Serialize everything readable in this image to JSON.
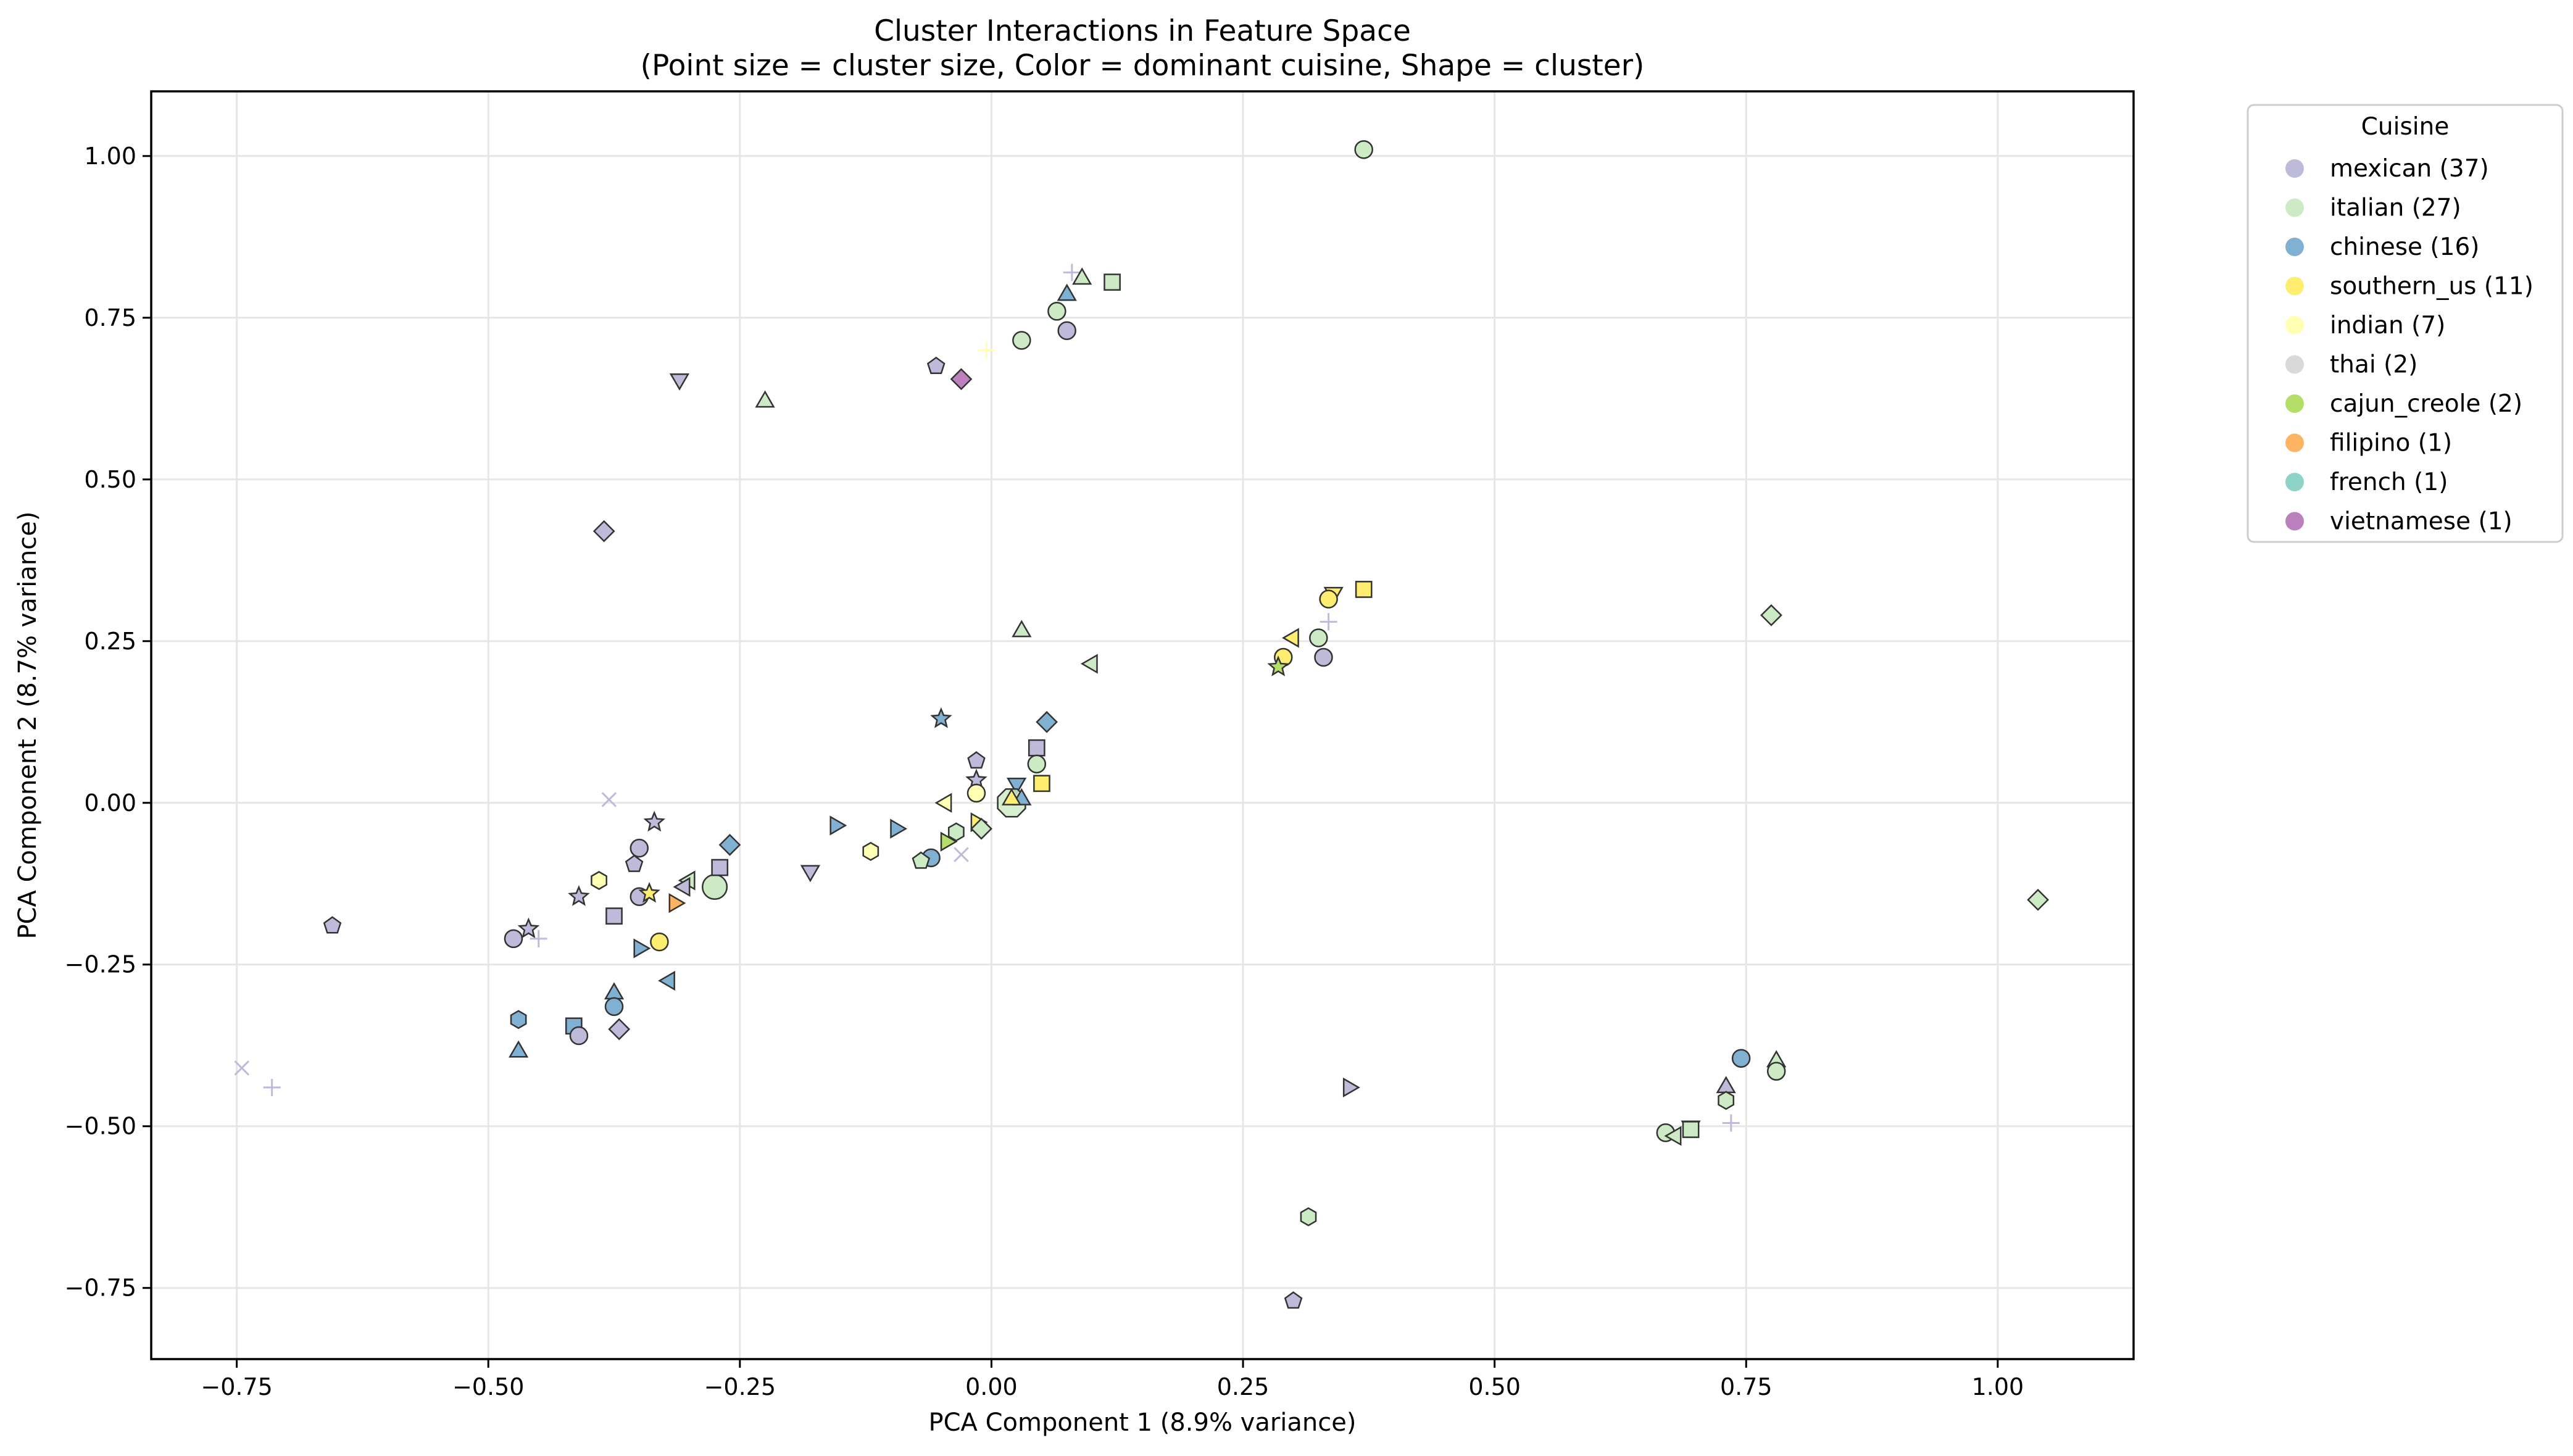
{
  "chart_data": {
    "type": "scatter",
    "title": "Cluster Interactions in Feature Space",
    "subtitle": "(Point size = cluster size, Color = dominant cuisine, Shape = cluster)",
    "xlabel": "PCA Component 1 (8.9% variance)",
    "ylabel": "PCA Component 2 (8.7% variance)",
    "xlim": [
      -0.835,
      1.135
    ],
    "ylim": [
      -0.86,
      1.1
    ],
    "grid": true,
    "xticks": [
      -0.75,
      -0.5,
      -0.25,
      0.0,
      0.25,
      0.5,
      0.75,
      1.0
    ],
    "yticks": [
      -0.75,
      -0.5,
      -0.25,
      0.0,
      0.25,
      0.5,
      0.75,
      1.0
    ],
    "xtick_labels": [
      "−0.75",
      "−0.50",
      "−0.25",
      "0.00",
      "0.25",
      "0.50",
      "0.75",
      "1.00"
    ],
    "ytick_labels": [
      "−0.75",
      "−0.50",
      "−0.25",
      "0.00",
      "0.25",
      "0.50",
      "0.75",
      "1.00"
    ],
    "legend": {
      "title": "Cuisine",
      "position": "outside-upper-right",
      "entries": [
        {
          "label": "mexican (37)",
          "cuisine": "mexican",
          "color": "#bebada"
        },
        {
          "label": "italian (27)",
          "cuisine": "italian",
          "color": "#ccebc5"
        },
        {
          "label": "chinese (16)",
          "cuisine": "chinese",
          "color": "#80b1d3"
        },
        {
          "label": "southern_us (11)",
          "cuisine": "southern_us",
          "color": "#ffed6f"
        },
        {
          "label": "indian (7)",
          "cuisine": "indian",
          "color": "#ffffb3"
        },
        {
          "label": "thai (2)",
          "cuisine": "thai",
          "color": "#d9d9d9"
        },
        {
          "label": "cajun_creole (2)",
          "cuisine": "cajun_creole",
          "color": "#b3de69"
        },
        {
          "label": "filipino (1)",
          "cuisine": "filipino",
          "color": "#fdb462"
        },
        {
          "label": "french (1)",
          "cuisine": "french",
          "color": "#8dd3c7"
        },
        {
          "label": "vietnamese (1)",
          "cuisine": "vietnamese",
          "color": "#bc80bd"
        }
      ]
    },
    "points": [
      {
        "x": 0.37,
        "y": 1.01,
        "cuisine": "italian",
        "shape": "circle",
        "size": 1
      },
      {
        "x": 0.08,
        "y": 0.82,
        "cuisine": "mexican",
        "shape": "plus",
        "size": 1
      },
      {
        "x": 0.12,
        "y": 0.805,
        "cuisine": "italian",
        "shape": "square",
        "size": 1
      },
      {
        "x": 0.09,
        "y": 0.81,
        "cuisine": "italian",
        "shape": "triangle-up",
        "size": 1
      },
      {
        "x": 0.075,
        "y": 0.785,
        "cuisine": "chinese",
        "shape": "triangle-up",
        "size": 1
      },
      {
        "x": 0.065,
        "y": 0.76,
        "cuisine": "italian",
        "shape": "circle",
        "size": 1
      },
      {
        "x": 0.075,
        "y": 0.73,
        "cuisine": "mexican",
        "shape": "circle",
        "size": 1
      },
      {
        "x": 0.03,
        "y": 0.715,
        "cuisine": "italian",
        "shape": "circle",
        "size": 1
      },
      {
        "x": -0.005,
        "y": 0.7,
        "cuisine": "indian",
        "shape": "plus",
        "size": 1
      },
      {
        "x": -0.055,
        "y": 0.675,
        "cuisine": "mexican",
        "shape": "pentagon",
        "size": 1
      },
      {
        "x": -0.03,
        "y": 0.655,
        "cuisine": "vietnamese",
        "shape": "diamond",
        "size": 1
      },
      {
        "x": -0.31,
        "y": 0.655,
        "cuisine": "mexican",
        "shape": "triangle-down",
        "size": 1
      },
      {
        "x": -0.225,
        "y": 0.62,
        "cuisine": "italian",
        "shape": "triangle-up",
        "size": 1
      },
      {
        "x": -0.385,
        "y": 0.42,
        "cuisine": "mexican",
        "shape": "diamond",
        "size": 1
      },
      {
        "x": 0.775,
        "y": 0.29,
        "cuisine": "italian",
        "shape": "diamond",
        "size": 1
      },
      {
        "x": 0.37,
        "y": 0.33,
        "cuisine": "southern_us",
        "shape": "square",
        "size": 1
      },
      {
        "x": 0.34,
        "y": 0.325,
        "cuisine": "southern_us",
        "shape": "triangle-down",
        "size": 1
      },
      {
        "x": 0.335,
        "y": 0.315,
        "cuisine": "southern_us",
        "shape": "circle",
        "size": 1
      },
      {
        "x": 0.335,
        "y": 0.28,
        "cuisine": "mexican",
        "shape": "plus",
        "size": 1
      },
      {
        "x": 0.3,
        "y": 0.255,
        "cuisine": "southern_us",
        "shape": "triangle-left",
        "size": 1
      },
      {
        "x": 0.325,
        "y": 0.255,
        "cuisine": "italian",
        "shape": "circle",
        "size": 1
      },
      {
        "x": 0.29,
        "y": 0.225,
        "cuisine": "southern_us",
        "shape": "circle",
        "size": 1
      },
      {
        "x": 0.33,
        "y": 0.225,
        "cuisine": "mexican",
        "shape": "circle",
        "size": 1
      },
      {
        "x": 0.285,
        "y": 0.21,
        "cuisine": "cajun_creole",
        "shape": "star",
        "size": 1
      },
      {
        "x": 0.03,
        "y": 0.265,
        "cuisine": "italian",
        "shape": "triangle-up",
        "size": 1
      },
      {
        "x": 0.1,
        "y": 0.215,
        "cuisine": "italian",
        "shape": "triangle-left",
        "size": 1
      },
      {
        "x": 0.055,
        "y": 0.125,
        "cuisine": "chinese",
        "shape": "diamond",
        "size": 1
      },
      {
        "x": -0.05,
        "y": 0.13,
        "cuisine": "chinese",
        "shape": "star",
        "size": 1
      },
      {
        "x": 0.045,
        "y": 0.085,
        "cuisine": "mexican",
        "shape": "square",
        "size": 1
      },
      {
        "x": -0.015,
        "y": 0.065,
        "cuisine": "mexican",
        "shape": "pentagon",
        "size": 1
      },
      {
        "x": 0.045,
        "y": 0.06,
        "cuisine": "italian",
        "shape": "circle",
        "size": 1
      },
      {
        "x": -0.015,
        "y": 0.035,
        "cuisine": "mexican",
        "shape": "star",
        "size": 1
      },
      {
        "x": 0.05,
        "y": 0.03,
        "cuisine": "southern_us",
        "shape": "square",
        "size": 1
      },
      {
        "x": 0.025,
        "y": 0.03,
        "cuisine": "chinese",
        "shape": "triangle-down",
        "size": 1
      },
      {
        "x": 0.02,
        "y": 0.0,
        "cuisine": "italian",
        "shape": "octagon",
        "size": 3
      },
      {
        "x": 0.03,
        "y": 0.005,
        "cuisine": "chinese",
        "shape": "triangle-up",
        "size": 1
      },
      {
        "x": 0.02,
        "y": 0.005,
        "cuisine": "southern_us",
        "shape": "triangle-up",
        "size": 1
      },
      {
        "x": -0.015,
        "y": 0.015,
        "cuisine": "indian",
        "shape": "circle",
        "size": 1
      },
      {
        "x": -0.045,
        "y": 0.0,
        "cuisine": "indian",
        "shape": "triangle-left",
        "size": 1
      },
      {
        "x": -0.015,
        "y": -0.03,
        "cuisine": "southern_us",
        "shape": "triangle-right",
        "size": 1
      },
      {
        "x": -0.01,
        "y": -0.04,
        "cuisine": "italian",
        "shape": "diamond",
        "size": 1
      },
      {
        "x": -0.035,
        "y": -0.045,
        "cuisine": "italian",
        "shape": "hexagon",
        "size": 1
      },
      {
        "x": -0.045,
        "y": -0.06,
        "cuisine": "cajun_creole",
        "shape": "triangle-right",
        "size": 1
      },
      {
        "x": -0.03,
        "y": -0.08,
        "cuisine": "mexican",
        "shape": "x",
        "size": 1
      },
      {
        "x": -0.06,
        "y": -0.085,
        "cuisine": "chinese",
        "shape": "circle",
        "size": 1
      },
      {
        "x": -0.07,
        "y": -0.09,
        "cuisine": "italian",
        "shape": "pentagon",
        "size": 1
      },
      {
        "x": -0.095,
        "y": -0.04,
        "cuisine": "chinese",
        "shape": "triangle-right",
        "size": 1
      },
      {
        "x": -0.155,
        "y": -0.035,
        "cuisine": "chinese",
        "shape": "triangle-right",
        "size": 1
      },
      {
        "x": -0.12,
        "y": -0.075,
        "cuisine": "indian",
        "shape": "hexagon",
        "size": 1
      },
      {
        "x": -0.18,
        "y": -0.105,
        "cuisine": "mexican",
        "shape": "triangle-down",
        "size": 1
      },
      {
        "x": -0.26,
        "y": -0.065,
        "cuisine": "chinese",
        "shape": "diamond",
        "size": 1
      },
      {
        "x": -0.275,
        "y": -0.13,
        "cuisine": "italian",
        "shape": "circle",
        "size": 2
      },
      {
        "x": -0.27,
        "y": -0.1,
        "cuisine": "mexican",
        "shape": "square",
        "size": 1
      },
      {
        "x": -0.38,
        "y": 0.005,
        "cuisine": "mexican",
        "shape": "x",
        "size": 1
      },
      {
        "x": -0.335,
        "y": -0.03,
        "cuisine": "mexican",
        "shape": "star",
        "size": 1
      },
      {
        "x": -0.35,
        "y": -0.07,
        "cuisine": "mexican",
        "shape": "circle",
        "size": 1
      },
      {
        "x": -0.355,
        "y": -0.095,
        "cuisine": "mexican",
        "shape": "pentagon",
        "size": 1
      },
      {
        "x": -0.39,
        "y": -0.12,
        "cuisine": "indian",
        "shape": "hexagon",
        "size": 1
      },
      {
        "x": -0.3,
        "y": -0.12,
        "cuisine": "italian",
        "shape": "triangle-left",
        "size": 1
      },
      {
        "x": -0.305,
        "y": -0.13,
        "cuisine": "mexican",
        "shape": "triangle-left",
        "size": 1
      },
      {
        "x": -0.35,
        "y": -0.145,
        "cuisine": "mexican",
        "shape": "circle",
        "size": 1
      },
      {
        "x": -0.41,
        "y": -0.145,
        "cuisine": "mexican",
        "shape": "star",
        "size": 1
      },
      {
        "x": -0.34,
        "y": -0.14,
        "cuisine": "southern_us",
        "shape": "star",
        "size": 1
      },
      {
        "x": -0.315,
        "y": -0.155,
        "cuisine": "filipino",
        "shape": "triangle-right",
        "size": 1
      },
      {
        "x": -0.375,
        "y": -0.175,
        "cuisine": "mexican",
        "shape": "square",
        "size": 1
      },
      {
        "x": -0.33,
        "y": -0.215,
        "cuisine": "southern_us",
        "shape": "circle",
        "size": 1
      },
      {
        "x": -0.35,
        "y": -0.225,
        "cuisine": "chinese",
        "shape": "triangle-right",
        "size": 1
      },
      {
        "x": -0.46,
        "y": -0.195,
        "cuisine": "mexican",
        "shape": "star",
        "size": 1
      },
      {
        "x": -0.45,
        "y": -0.21,
        "cuisine": "mexican",
        "shape": "plus",
        "size": 1
      },
      {
        "x": -0.475,
        "y": -0.21,
        "cuisine": "mexican",
        "shape": "circle",
        "size": 1
      },
      {
        "x": -0.655,
        "y": -0.19,
        "cuisine": "mexican",
        "shape": "pentagon",
        "size": 1
      },
      {
        "x": -0.32,
        "y": -0.275,
        "cuisine": "chinese",
        "shape": "triangle-left",
        "size": 1
      },
      {
        "x": -0.375,
        "y": -0.295,
        "cuisine": "chinese",
        "shape": "triangle-up",
        "size": 1
      },
      {
        "x": -0.375,
        "y": -0.315,
        "cuisine": "chinese",
        "shape": "circle",
        "size": 1
      },
      {
        "x": -0.47,
        "y": -0.335,
        "cuisine": "chinese",
        "shape": "hexagon",
        "size": 1
      },
      {
        "x": -0.415,
        "y": -0.345,
        "cuisine": "chinese",
        "shape": "square",
        "size": 1
      },
      {
        "x": -0.37,
        "y": -0.35,
        "cuisine": "mexican",
        "shape": "diamond",
        "size": 1
      },
      {
        "x": -0.41,
        "y": -0.36,
        "cuisine": "mexican",
        "shape": "circle",
        "size": 1
      },
      {
        "x": -0.47,
        "y": -0.385,
        "cuisine": "chinese",
        "shape": "triangle-up",
        "size": 1
      },
      {
        "x": -0.745,
        "y": -0.41,
        "cuisine": "mexican",
        "shape": "x",
        "size": 1
      },
      {
        "x": -0.715,
        "y": -0.44,
        "cuisine": "mexican",
        "shape": "plus",
        "size": 1
      },
      {
        "x": 1.04,
        "y": -0.15,
        "cuisine": "italian",
        "shape": "diamond",
        "size": 1
      },
      {
        "x": 0.745,
        "y": -0.395,
        "cuisine": "chinese",
        "shape": "circle",
        "size": 1
      },
      {
        "x": 0.78,
        "y": -0.4,
        "cuisine": "italian",
        "shape": "triangle-up",
        "size": 1
      },
      {
        "x": 0.78,
        "y": -0.415,
        "cuisine": "italian",
        "shape": "circle",
        "size": 1
      },
      {
        "x": 0.73,
        "y": -0.44,
        "cuisine": "mexican",
        "shape": "triangle-up",
        "size": 1
      },
      {
        "x": 0.73,
        "y": -0.46,
        "cuisine": "italian",
        "shape": "hexagon",
        "size": 1
      },
      {
        "x": 0.735,
        "y": -0.495,
        "cuisine": "mexican",
        "shape": "plus",
        "size": 1
      },
      {
        "x": 0.695,
        "y": -0.5,
        "cuisine": "mexican",
        "shape": "triangle-down",
        "size": 1
      },
      {
        "x": 0.695,
        "y": -0.505,
        "cuisine": "italian",
        "shape": "square",
        "size": 1
      },
      {
        "x": 0.67,
        "y": -0.51,
        "cuisine": "italian",
        "shape": "circle",
        "size": 1
      },
      {
        "x": 0.68,
        "y": -0.515,
        "cuisine": "italian",
        "shape": "triangle-left",
        "size": 1
      },
      {
        "x": 0.355,
        "y": -0.44,
        "cuisine": "mexican",
        "shape": "triangle-right",
        "size": 1
      },
      {
        "x": 0.315,
        "y": -0.64,
        "cuisine": "italian",
        "shape": "hexagon",
        "size": 1
      },
      {
        "x": 0.3,
        "y": -0.77,
        "cuisine": "mexican",
        "shape": "pentagon",
        "size": 1
      }
    ]
  }
}
